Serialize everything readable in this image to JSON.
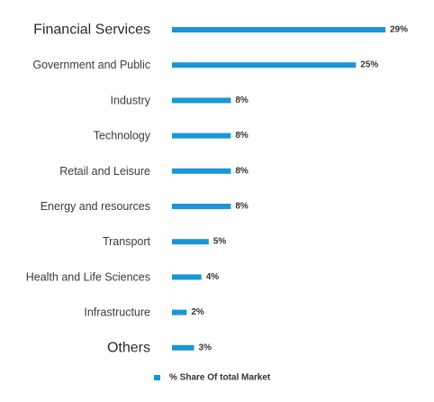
{
  "chart_data": {
    "type": "bar",
    "orientation": "horizontal",
    "categories": [
      "Financial Services",
      "Government and Public",
      "Industry",
      "Technology",
      "Retail and Leisure",
      "Energy and resources",
      "Transport",
      "Health and Life Sciences",
      "Infrastructure",
      "Others"
    ],
    "series": [
      {
        "name": "% Share Of total Market",
        "values": [
          29,
          25,
          8,
          8,
          8,
          8,
          5,
          4,
          2,
          3
        ],
        "data_labels": [
          "29%",
          "25%",
          "8%",
          "8%",
          "8%",
          "8%",
          "5%",
          "4%",
          "2%",
          "3%"
        ]
      }
    ],
    "xlim": [
      0,
      29
    ],
    "bar_color": "#1a96d4",
    "legend_position": "bottom",
    "grid": false
  }
}
